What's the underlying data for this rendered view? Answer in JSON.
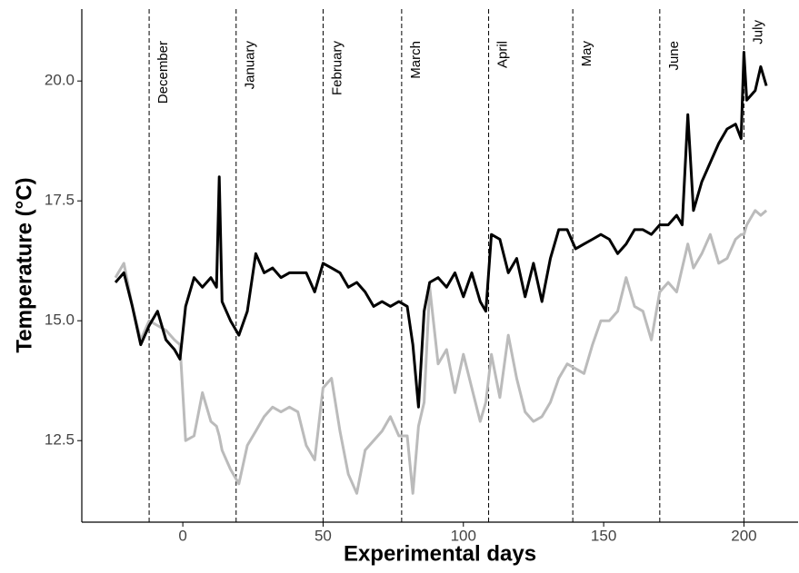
{
  "chart_data": {
    "type": "line",
    "xlabel": "Experimental days",
    "ylabel": "Temperature (°C)",
    "x": [
      -24,
      -21,
      -18,
      -15,
      -12,
      -9,
      -6,
      -3,
      -1,
      1,
      4,
      7,
      10,
      12,
      13,
      14,
      17,
      20,
      23,
      26,
      29,
      32,
      35,
      38,
      41,
      44,
      47,
      50,
      53,
      56,
      59,
      62,
      65,
      68,
      71,
      74,
      77,
      80,
      82,
      84,
      86,
      88,
      91,
      94,
      97,
      100,
      103,
      106,
      108,
      110,
      113,
      116,
      119,
      122,
      125,
      128,
      131,
      134,
      137,
      140,
      143,
      146,
      149,
      152,
      155,
      158,
      161,
      164,
      167,
      170,
      173,
      176,
      178,
      180,
      182,
      185,
      188,
      191,
      194,
      197,
      199,
      200,
      201,
      204,
      206,
      208
    ],
    "series": [
      {
        "color": "#000000",
        "values": [
          15.8,
          16.0,
          15.3,
          14.5,
          14.9,
          15.2,
          14.6,
          14.4,
          14.2,
          15.3,
          15.9,
          15.7,
          15.9,
          15.7,
          18.0,
          15.4,
          15.0,
          14.7,
          15.2,
          16.4,
          16.0,
          16.1,
          15.9,
          16.0,
          16.0,
          16.0,
          15.6,
          16.2,
          16.1,
          16.0,
          15.7,
          15.8,
          15.6,
          15.3,
          15.4,
          15.3,
          15.4,
          15.3,
          14.5,
          13.2,
          15.2,
          15.8,
          15.9,
          15.7,
          16.0,
          15.5,
          16.0,
          15.4,
          15.2,
          16.8,
          16.7,
          16.0,
          16.3,
          15.5,
          16.2,
          15.4,
          16.3,
          16.9,
          16.9,
          16.5,
          16.6,
          16.7,
          16.8,
          16.7,
          16.4,
          16.6,
          16.9,
          16.9,
          16.8,
          17.0,
          17.0,
          17.2,
          17.0,
          19.3,
          17.3,
          17.9,
          18.3,
          18.7,
          19.0,
          19.1,
          18.8,
          20.6,
          19.6,
          19.8,
          20.3,
          19.9
        ]
      },
      {
        "color": "#bbbbbb",
        "values": [
          15.9,
          16.2,
          15.3,
          14.6,
          15.0,
          14.9,
          14.8,
          14.6,
          14.5,
          12.5,
          12.6,
          13.5,
          12.9,
          12.8,
          12.6,
          12.3,
          11.9,
          11.6,
          12.4,
          12.7,
          13.0,
          13.2,
          13.1,
          13.2,
          13.1,
          12.4,
          12.1,
          13.6,
          13.8,
          12.7,
          11.8,
          11.4,
          12.3,
          12.5,
          12.7,
          13.0,
          12.6,
          12.6,
          11.4,
          12.8,
          13.3,
          15.7,
          14.1,
          14.4,
          13.5,
          14.3,
          13.6,
          12.9,
          13.3,
          14.3,
          13.4,
          14.7,
          13.8,
          13.1,
          12.9,
          13.0,
          13.3,
          13.8,
          14.1,
          14.0,
          13.9,
          14.5,
          15.0,
          15.0,
          15.2,
          15.9,
          15.3,
          15.2,
          14.6,
          15.6,
          15.8,
          15.6,
          16.1,
          16.6,
          16.1,
          16.4,
          16.8,
          16.2,
          16.3,
          16.7,
          16.8,
          16.8,
          17.0,
          17.3,
          17.2,
          17.3
        ]
      }
    ],
    "vlines": [
      {
        "x": -12,
        "label": "December"
      },
      {
        "x": 19,
        "label": "January"
      },
      {
        "x": 50,
        "label": "February"
      },
      {
        "x": 78,
        "label": "March"
      },
      {
        "x": 109,
        "label": "April"
      },
      {
        "x": 139,
        "label": "May"
      },
      {
        "x": 170,
        "label": "June"
      },
      {
        "x": 200,
        "label": "July"
      }
    ],
    "xlim": [
      -36,
      219.3
    ],
    "xticks": [
      0,
      50,
      100,
      150,
      200
    ],
    "ylim": [
      10.8,
      21.5
    ],
    "yticks": [
      {
        "value": 12.5,
        "label": "12.5"
      },
      {
        "value": 15,
        "label": "15.0"
      },
      {
        "value": 17.5,
        "label": "17.5"
      },
      {
        "value": 20,
        "label": "20.0"
      }
    ],
    "grid": false
  }
}
